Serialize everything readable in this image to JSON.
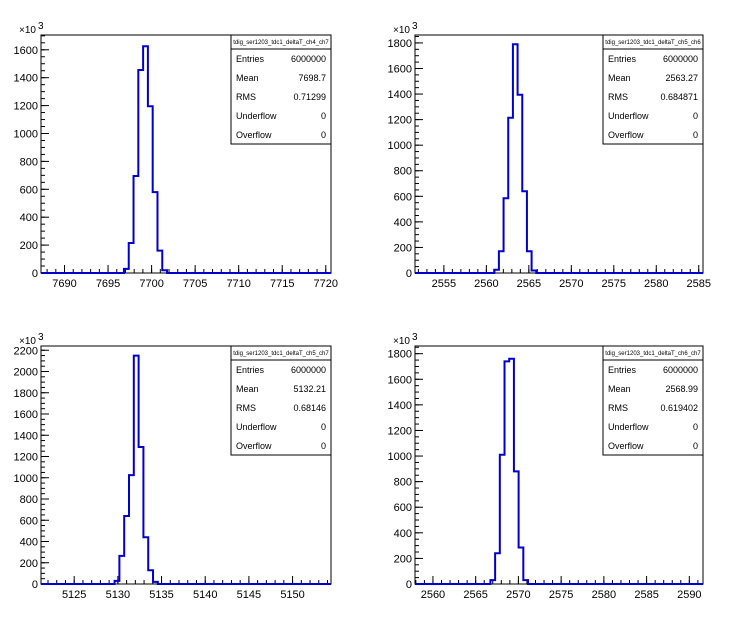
{
  "chart_data": [
    {
      "type": "histogram",
      "y_exponent": "10",
      "y_exponent_power": "3",
      "xlim": [
        7687.3,
        7720.6
      ],
      "ylim": [
        0,
        1706
      ],
      "x_ticks": [
        7690,
        7695,
        7700,
        7705,
        7710,
        7715,
        7720
      ],
      "y_ticks": [
        0,
        200,
        400,
        600,
        800,
        1000,
        1200,
        1400,
        1600
      ],
      "bin_width": 0.55,
      "bins": [
        {
          "x": 7697.1,
          "y": 30
        },
        {
          "x": 7697.65,
          "y": 215
        },
        {
          "x": 7698.2,
          "y": 695
        },
        {
          "x": 7698.75,
          "y": 1455
        },
        {
          "x": 7699.3,
          "y": 1625
        },
        {
          "x": 7699.85,
          "y": 1195
        },
        {
          "x": 7700.4,
          "y": 580
        },
        {
          "x": 7700.95,
          "y": 160
        },
        {
          "x": 7701.5,
          "y": 20
        }
      ],
      "stats": {
        "title": "tdig_ser1203_tdc1_deltaT_ch4_ch7",
        "rows": [
          {
            "key": "Entries",
            "value": "6000000"
          },
          {
            "key": "Mean",
            "value": "7698.7"
          },
          {
            "key": "RMS",
            "value": "0.71299"
          },
          {
            "key": "Underflow",
            "value": "0"
          },
          {
            "key": "Overflow",
            "value": "0"
          }
        ]
      }
    },
    {
      "type": "histogram",
      "y_exponent": "10",
      "y_exponent_power": "3",
      "xlim": [
        2551.6,
        2585.5
      ],
      "ylim": [
        0,
        1862
      ],
      "x_ticks": [
        2555,
        2560,
        2565,
        2570,
        2575,
        2580,
        2585
      ],
      "y_ticks": [
        0,
        200,
        400,
        600,
        800,
        1000,
        1200,
        1400,
        1600,
        1800
      ],
      "bin_width": 0.55,
      "bins": [
        {
          "x": 2561.2,
          "y": 25
        },
        {
          "x": 2561.75,
          "y": 170
        },
        {
          "x": 2562.3,
          "y": 585
        },
        {
          "x": 2562.85,
          "y": 1215
        },
        {
          "x": 2563.4,
          "y": 1790
        },
        {
          "x": 2563.95,
          "y": 1395
        },
        {
          "x": 2564.5,
          "y": 640
        },
        {
          "x": 2565.05,
          "y": 170
        },
        {
          "x": 2565.6,
          "y": 20
        }
      ],
      "stats": {
        "title": "tdig_ser1203_tdc1_deltaT_ch5_ch6",
        "rows": [
          {
            "key": "Entries",
            "value": "6000000"
          },
          {
            "key": "Mean",
            "value": "2563.27"
          },
          {
            "key": "RMS",
            "value": "0.684871"
          },
          {
            "key": "Underflow",
            "value": "0"
          },
          {
            "key": "Overflow",
            "value": "0"
          }
        ]
      }
    },
    {
      "type": "histogram",
      "y_exponent": "10",
      "y_exponent_power": "3",
      "xlim": [
        5121.2,
        5154.4
      ],
      "ylim": [
        0,
        2240
      ],
      "x_ticks": [
        5125,
        5130,
        5135,
        5140,
        5145,
        5150
      ],
      "y_ticks": [
        0,
        200,
        400,
        600,
        800,
        1000,
        1200,
        1400,
        1600,
        1800,
        2000,
        2200
      ],
      "bin_width": 0.55,
      "bins": [
        {
          "x": 5129.9,
          "y": 30
        },
        {
          "x": 5130.45,
          "y": 265
        },
        {
          "x": 5131.0,
          "y": 640
        },
        {
          "x": 5131.55,
          "y": 1025
        },
        {
          "x": 5132.1,
          "y": 2150
        },
        {
          "x": 5132.65,
          "y": 1290
        },
        {
          "x": 5133.2,
          "y": 440
        },
        {
          "x": 5133.75,
          "y": 130
        },
        {
          "x": 5134.3,
          "y": 20
        }
      ],
      "stats": {
        "title": "tdig_ser1203_tdc1_deltaT_ch5_ch7",
        "rows": [
          {
            "key": "Entries",
            "value": "6000000"
          },
          {
            "key": "Mean",
            "value": "5132.21"
          },
          {
            "key": "RMS",
            "value": "0.68146"
          },
          {
            "key": "Underflow",
            "value": "0"
          },
          {
            "key": "Overflow",
            "value": "0"
          }
        ]
      }
    },
    {
      "type": "histogram",
      "y_exponent": "10",
      "y_exponent_power": "3",
      "xlim": [
        2557.9,
        2591.6
      ],
      "ylim": [
        0,
        1860
      ],
      "x_ticks": [
        2560,
        2565,
        2570,
        2575,
        2580,
        2585,
        2590
      ],
      "y_ticks": [
        0,
        200,
        400,
        600,
        800,
        1000,
        1200,
        1400,
        1600,
        1800
      ],
      "bin_width": 0.55,
      "bins": [
        {
          "x": 2567.0,
          "y": 30
        },
        {
          "x": 2567.55,
          "y": 240
        },
        {
          "x": 2568.1,
          "y": 1010
        },
        {
          "x": 2568.65,
          "y": 1740
        },
        {
          "x": 2569.2,
          "y": 1760
        },
        {
          "x": 2569.75,
          "y": 880
        },
        {
          "x": 2570.3,
          "y": 285
        },
        {
          "x": 2570.85,
          "y": 30
        }
      ],
      "stats": {
        "title": "tdig_ser1203_tdc1_deltaT_ch6_ch7",
        "rows": [
          {
            "key": "Entries",
            "value": "6000000"
          },
          {
            "key": "Mean",
            "value": "2568.99"
          },
          {
            "key": "RMS",
            "value": "0.619402"
          },
          {
            "key": "Underflow",
            "value": "0"
          },
          {
            "key": "Overflow",
            "value": "0"
          }
        ]
      }
    }
  ]
}
